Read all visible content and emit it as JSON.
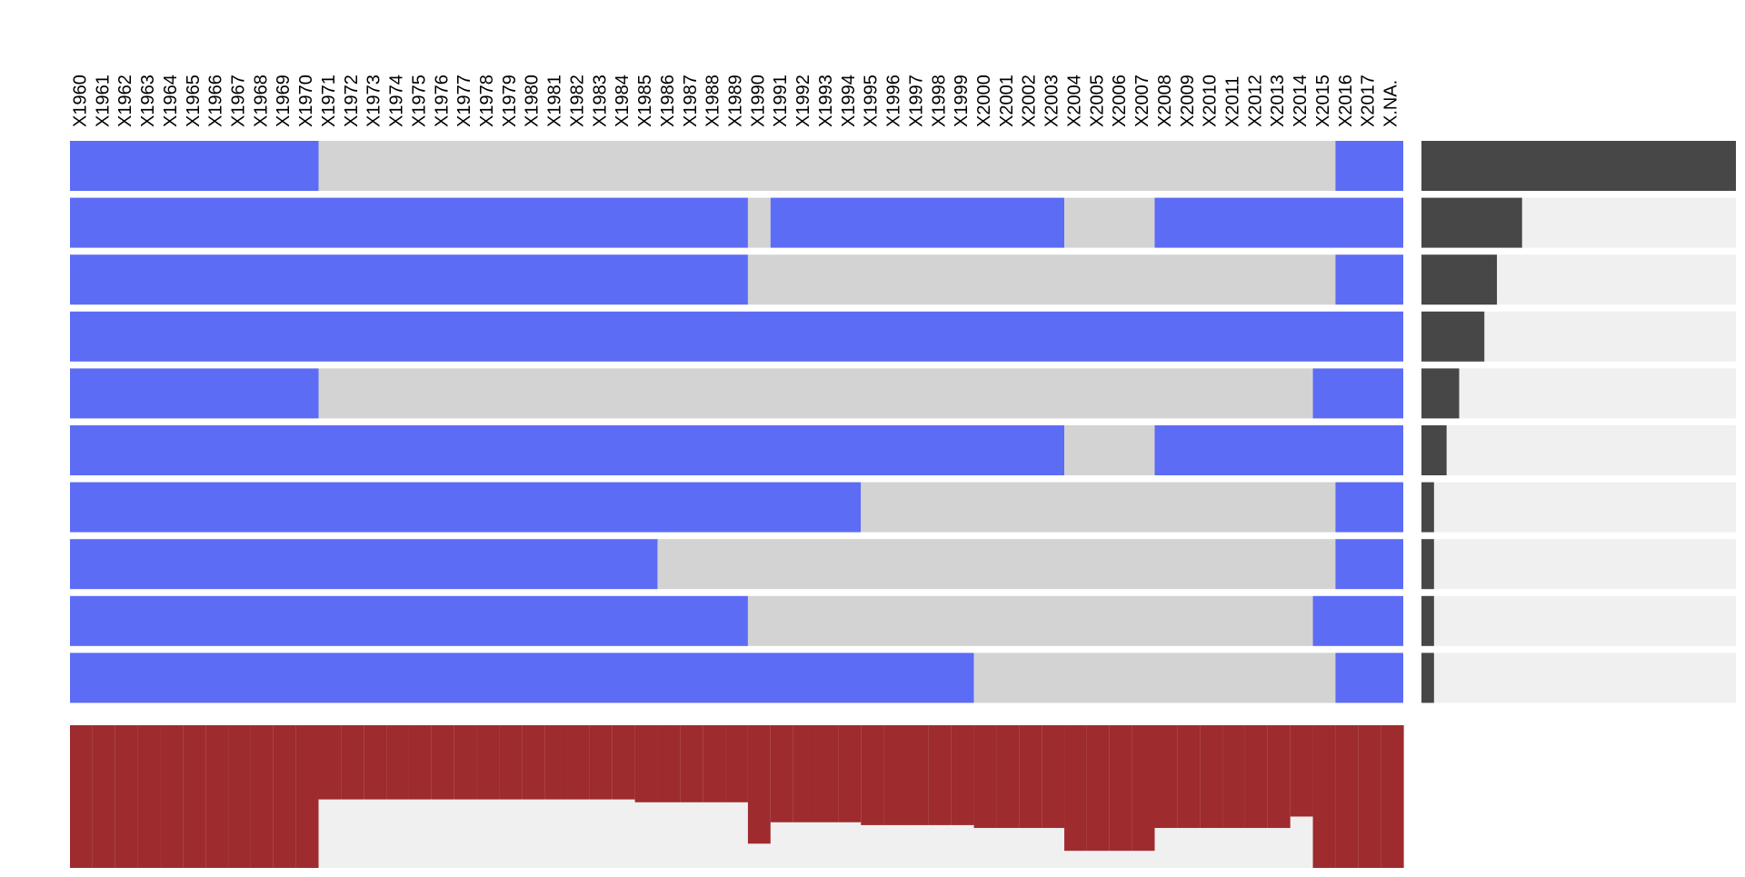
{
  "chart_data": {
    "type": "heatmap",
    "title": "",
    "columns": [
      "X1960",
      "X1961",
      "X1962",
      "X1963",
      "X1964",
      "X1965",
      "X1966",
      "X1967",
      "X1968",
      "X1969",
      "X1970",
      "X1971",
      "X1972",
      "X1973",
      "X1974",
      "X1975",
      "X1976",
      "X1977",
      "X1978",
      "X1979",
      "X1980",
      "X1981",
      "X1982",
      "X1983",
      "X1984",
      "X1985",
      "X1986",
      "X1987",
      "X1988",
      "X1989",
      "X1990",
      "X1991",
      "X1992",
      "X1993",
      "X1994",
      "X1995",
      "X1996",
      "X1997",
      "X1998",
      "X1999",
      "X2000",
      "X2001",
      "X2002",
      "X2003",
      "X2004",
      "X2005",
      "X2006",
      "X2007",
      "X2008",
      "X2009",
      "X2010",
      "X2011",
      "X2012",
      "X2013",
      "X2014",
      "X2015",
      "X2016",
      "X2017",
      "X.NA."
    ],
    "row_patterns": [
      "11111111111000000000000000000000000000000000000000000000111",
      "11111111111111111111111111111101111111111111000011111111111",
      "11111111111111111111111111111100000000000000000000000000111",
      "11111111111111111111111111111111111111111111111111111111111",
      "11111111111000000000000000000000000000000000000000000001111",
      "11111111111111111111111111111111111111111111000011111111111",
      "11111111111111111111111111111111111000000000000000000000111",
      "11111111111111111111111111000000000000000000000000000000111",
      "11111111111111111111111111111100000000000000000000000001111",
      "11111111111111111111111111111111111111110000000000000000111"
    ],
    "row_frequencies": [
      1.0,
      0.32,
      0.24,
      0.2,
      0.12,
      0.08,
      0.04,
      0.04,
      0.04,
      0.04
    ],
    "column_totals": [
      1.0,
      1.0,
      1.0,
      1.0,
      1.0,
      1.0,
      1.0,
      1.0,
      1.0,
      1.0,
      1.0,
      0.52,
      0.52,
      0.52,
      0.52,
      0.52,
      0.52,
      0.52,
      0.52,
      0.52,
      0.52,
      0.52,
      0.52,
      0.52,
      0.52,
      0.54,
      0.54,
      0.54,
      0.54,
      0.54,
      0.83,
      0.68,
      0.68,
      0.68,
      0.68,
      0.7,
      0.7,
      0.7,
      0.7,
      0.7,
      0.72,
      0.72,
      0.72,
      0.72,
      0.88,
      0.88,
      0.88,
      0.88,
      0.72,
      0.72,
      0.72,
      0.72,
      0.72,
      0.72,
      0.64,
      1.0,
      1.0,
      1.0,
      1.0
    ],
    "colors": {
      "present": "#5c6cf5",
      "missing": "#d3d3d3",
      "frequency_bar": "#474747",
      "total_bar": "#9e2b2e",
      "track": "#f0f0f0"
    },
    "grid": false,
    "legend": "none"
  }
}
